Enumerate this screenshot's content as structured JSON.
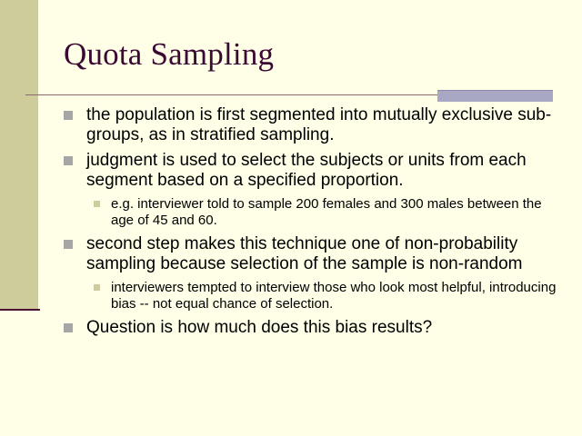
{
  "slide": {
    "title": "Quota Sampling",
    "bullets": [
      {
        "level": 1,
        "text": "the population is first segmented into mutually exclusive sub-groups, as in stratified sampling."
      },
      {
        "level": 1,
        "text": "judgment is used to select the subjects or units from each segment based on a specified proportion."
      },
      {
        "level": 2,
        "text": "e.g. interviewer told to sample 200 females and 300 males between the age of 45 and 60."
      },
      {
        "level": 1,
        "text": "second step makes this technique one of non-probability sampling because selection of the sample is non-random"
      },
      {
        "level": 2,
        "text": "interviewers tempted to interview those who look most helpful, introducing bias -- not equal chance of selection."
      },
      {
        "level": 1,
        "text": "Question is how much does this bias results?"
      }
    ]
  },
  "colors": {
    "background": "#fffee6",
    "left_bar": "#cfcc9c",
    "title": "#3a0a33",
    "bullet_marker": "#a6a6a6",
    "sub_bullet_marker": "#cfcc9c",
    "accent_bar": "#a9a8c4"
  }
}
